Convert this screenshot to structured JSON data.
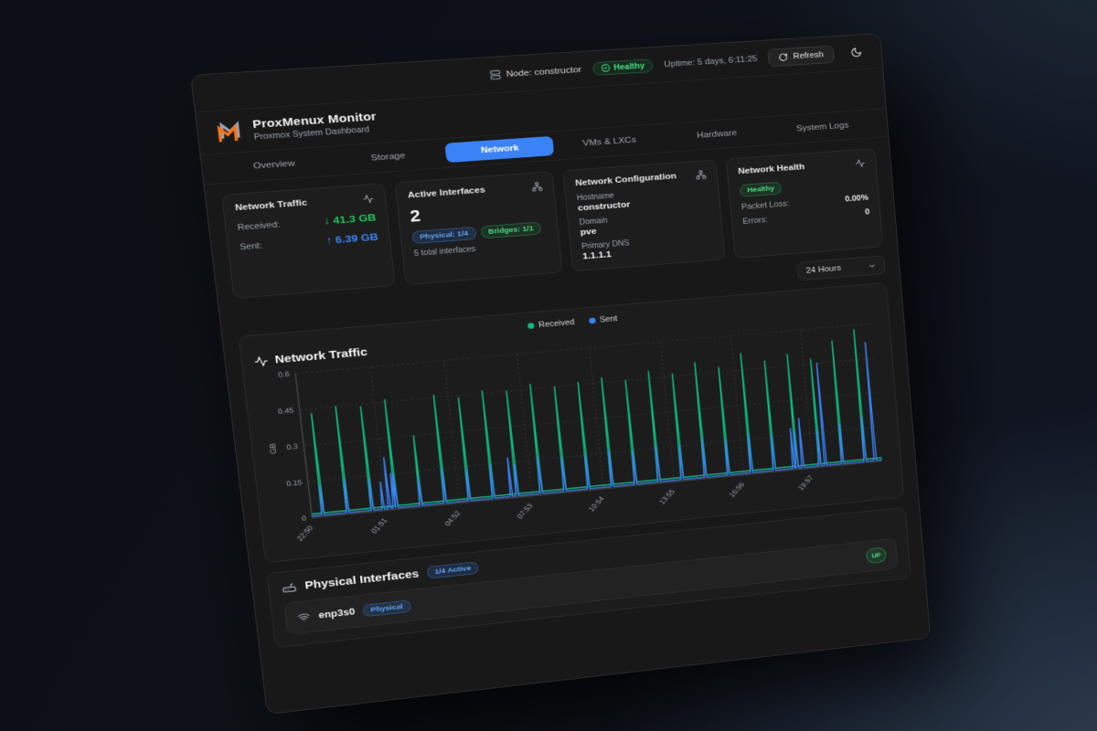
{
  "topbar": {
    "node_label": "Node: constructor",
    "health_badge": "Healthy",
    "uptime": "Uptime: 5 days, 6:11:25",
    "refresh_label": "Refresh"
  },
  "header": {
    "title": "ProxMenux Monitor",
    "subtitle": "Proxmox System Dashboard"
  },
  "tabs": [
    {
      "label": "Overview"
    },
    {
      "label": "Storage"
    },
    {
      "label": "Network"
    },
    {
      "label": "VMs & LXCs"
    },
    {
      "label": "Hardware"
    },
    {
      "label": "System Logs"
    }
  ],
  "active_tab": "Network",
  "glyphs": {
    "arrow_down": "↓",
    "arrow_up": "↑"
  },
  "cards": {
    "traffic": {
      "title": "Network Traffic",
      "received_label": "Received:",
      "received_value": "41.3 GB",
      "sent_label": "Sent:",
      "sent_value": "6.39 GB"
    },
    "interfaces": {
      "title": "Active Interfaces",
      "count": "2",
      "physical_badge": "Physical: 1/4",
      "bridges_badge": "Bridges: 1/1",
      "total": "5 total interfaces"
    },
    "config": {
      "title": "Network Configuration",
      "hostname_label": "Hostname",
      "hostname": "constructor",
      "domain_label": "Domain",
      "domain": "pve",
      "dns_label": "Primary DNS",
      "dns": "1.1.1.1"
    },
    "health": {
      "title": "Network Health",
      "status": "Healthy",
      "packet_loss_label": "Packet Loss:",
      "packet_loss": "0.00%",
      "errors_label": "Errors:",
      "errors": "0"
    }
  },
  "time_range": {
    "selected": "24 Hours"
  },
  "chart_data": {
    "type": "line",
    "title": "Network Traffic",
    "ylabel": "GB",
    "ylim": [
      0,
      0.6
    ],
    "yticks": [
      0,
      0.15,
      0.3,
      0.45,
      0.6
    ],
    "ytick_labels": [
      "0",
      "0.15",
      "0.3",
      "0.45",
      "0.6"
    ],
    "x_range_hours": [
      0,
      24.2
    ],
    "xtick_hours": [
      0,
      3.0167,
      6.0333,
      9.05,
      12.0667,
      15.0833,
      18.1,
      21.1167
    ],
    "xtick_labels": [
      "22:50",
      "01:51",
      "04:52",
      "07:53",
      "10:54",
      "13:55",
      "16:56",
      "19:57"
    ],
    "grid": "dashed",
    "legend_position": "top",
    "series": [
      {
        "name": "Received",
        "color": "#10b981",
        "baseline_gb": 0.015,
        "spikes": [
          [
            0.45,
            0.43
          ],
          [
            1.45,
            0.45
          ],
          [
            2.45,
            0.44
          ],
          [
            3.45,
            0.46
          ],
          [
            4.45,
            0.3
          ],
          [
            5.45,
            0.46
          ],
          [
            6.45,
            0.44
          ],
          [
            7.45,
            0.46
          ],
          [
            8.45,
            0.45
          ],
          [
            9.45,
            0.47
          ],
          [
            10.45,
            0.45
          ],
          [
            11.45,
            0.46
          ],
          [
            12.45,
            0.47
          ],
          [
            13.45,
            0.45
          ],
          [
            14.45,
            0.48
          ],
          [
            15.45,
            0.46
          ],
          [
            16.45,
            0.5
          ],
          [
            17.45,
            0.47
          ],
          [
            18.45,
            0.52
          ],
          [
            19.45,
            0.48
          ],
          [
            20.45,
            0.5
          ],
          [
            21.45,
            0.47
          ],
          [
            22.45,
            0.54
          ],
          [
            23.45,
            0.58
          ]
        ]
      },
      {
        "name": "Sent",
        "color": "#3b82f6",
        "baseline_gb": 0.006,
        "spikes": [
          [
            0.45,
            0.13
          ],
          [
            1.45,
            0.15
          ],
          [
            2.45,
            0.14
          ],
          [
            2.9,
            0.12
          ],
          [
            3.15,
            0.22
          ],
          [
            3.35,
            0.15
          ],
          [
            3.45,
            0.15
          ],
          [
            4.45,
            0.12
          ],
          [
            5.45,
            0.15
          ],
          [
            6.45,
            0.14
          ],
          [
            7.45,
            0.15
          ],
          [
            8.2,
            0.17
          ],
          [
            8.45,
            0.14
          ],
          [
            9.45,
            0.16
          ],
          [
            10.45,
            0.15
          ],
          [
            11.45,
            0.15
          ],
          [
            12.45,
            0.16
          ],
          [
            13.45,
            0.15
          ],
          [
            14.45,
            0.16
          ],
          [
            15.45,
            0.15
          ],
          [
            16.45,
            0.17
          ],
          [
            17.45,
            0.16
          ],
          [
            18.45,
            0.17
          ],
          [
            19.45,
            0.16
          ],
          [
            20.3,
            0.18
          ],
          [
            20.45,
            0.17
          ],
          [
            20.7,
            0.22
          ],
          [
            21.45,
            0.16
          ],
          [
            21.7,
            0.45
          ],
          [
            22.45,
            0.18
          ],
          [
            23.45,
            0.2
          ],
          [
            23.9,
            0.52
          ]
        ]
      }
    ]
  },
  "physical_interfaces": {
    "title": "Physical Interfaces",
    "active_badge": "1/4 Active",
    "rows": [
      {
        "name": "enp3s0",
        "type_badge": "Physical",
        "status": "UP"
      }
    ]
  },
  "colors": {
    "accent_blue": "#3b82f6",
    "green": "#22c55e",
    "received": "#10b981",
    "sent": "#3b82f6",
    "logo_orange": "#f97316",
    "logo_gray": "#9ca3af"
  }
}
